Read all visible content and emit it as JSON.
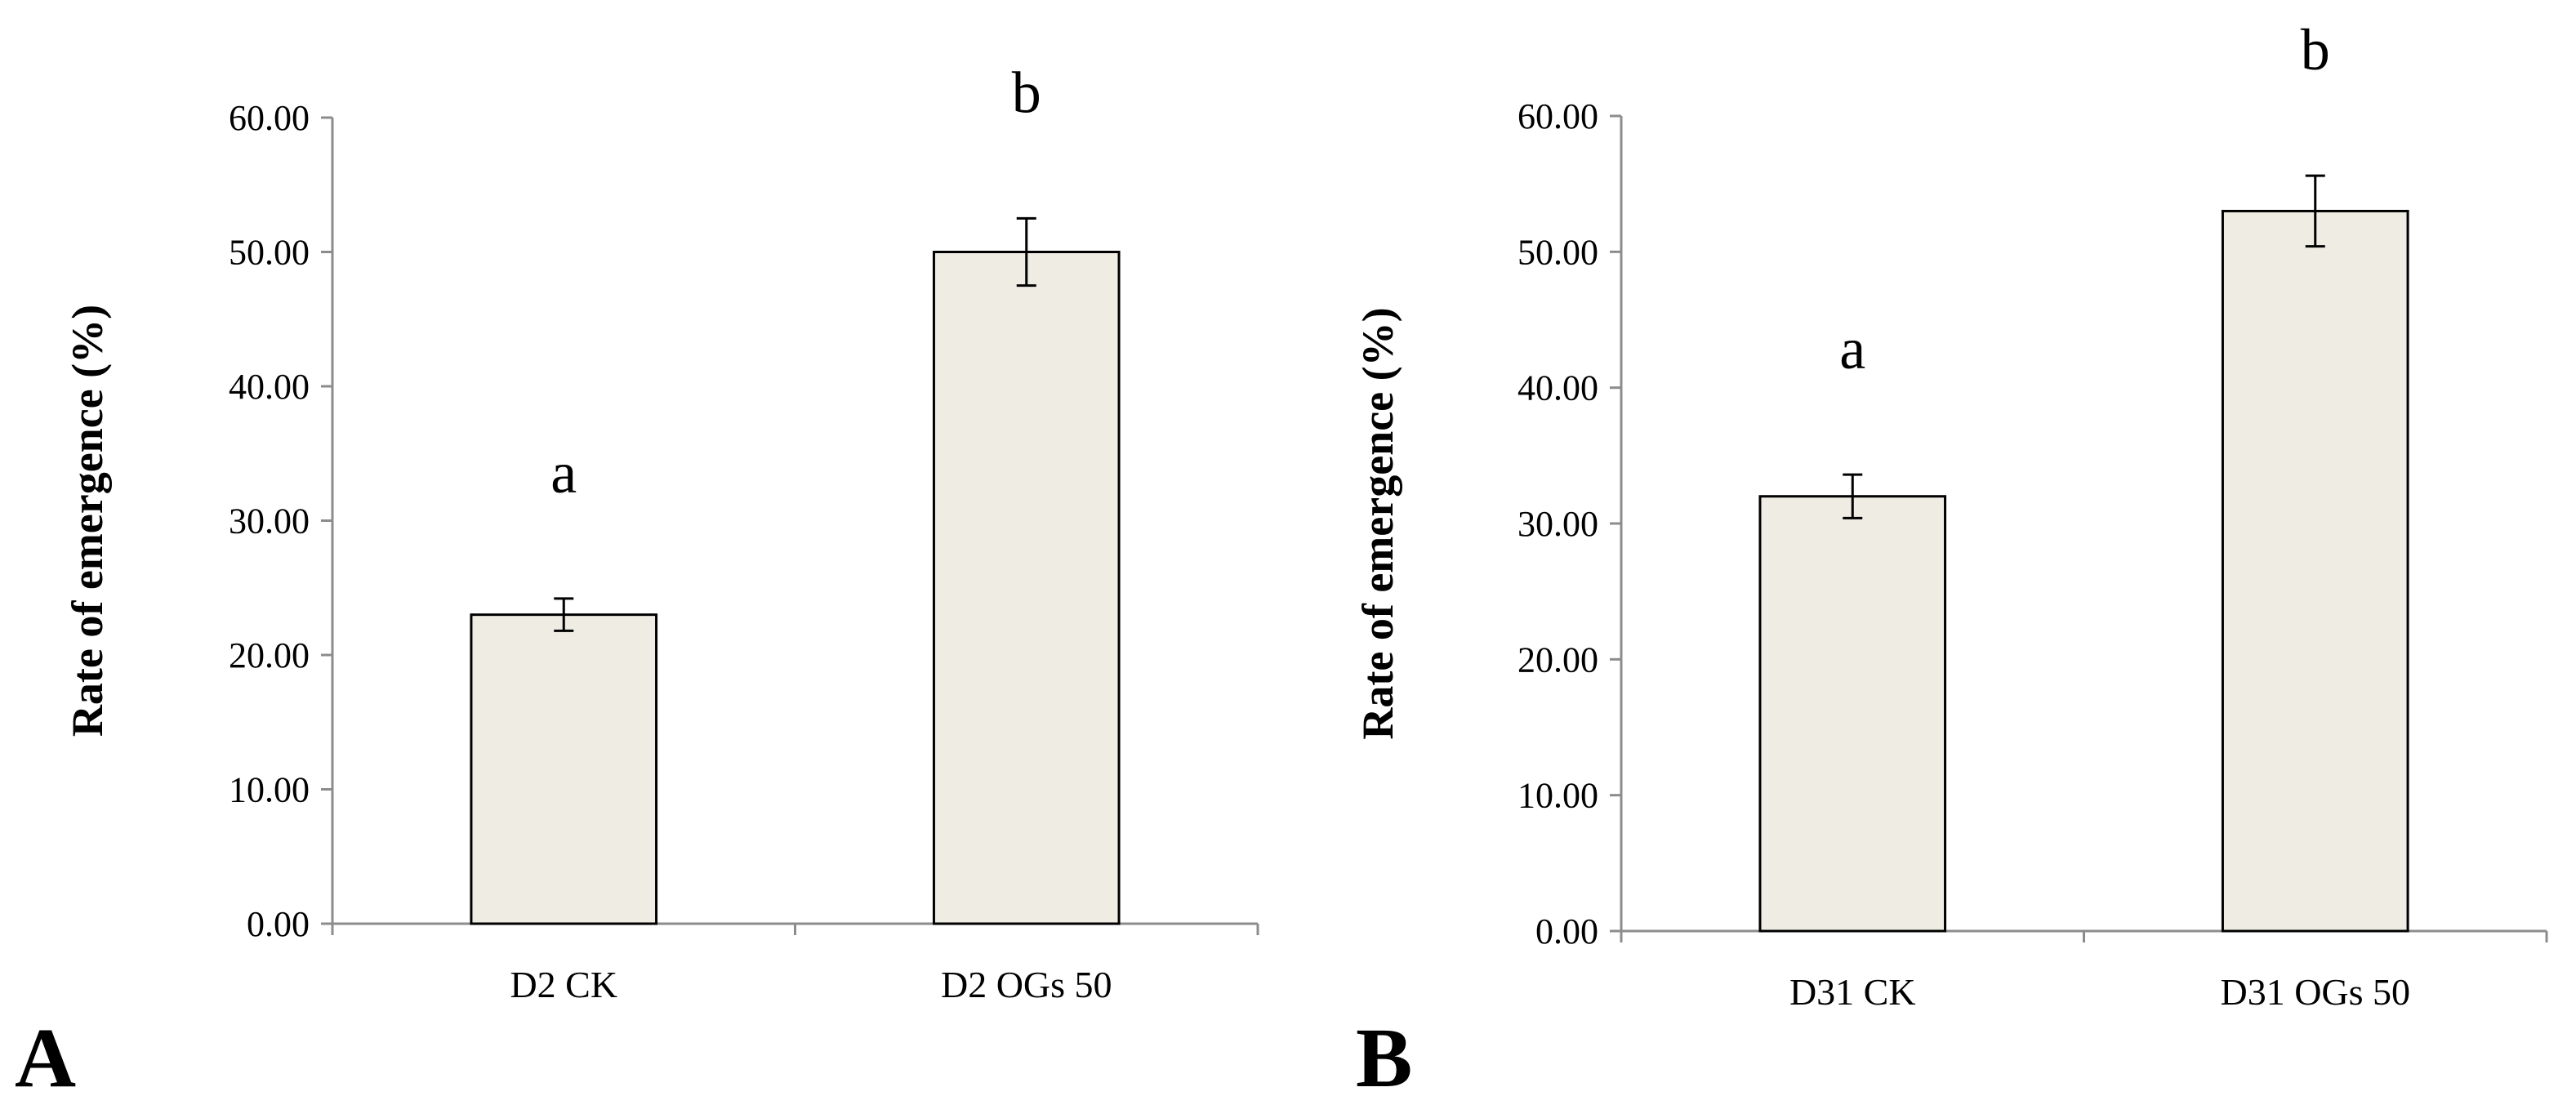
{
  "chart_data": [
    {
      "type": "bar",
      "panel_label": "A",
      "ylabel": "Rate of emergence (%)",
      "xlabel": "",
      "ylim": [
        0,
        60
      ],
      "yticks": [
        "0.00",
        "10.00",
        "20.00",
        "30.00",
        "40.00",
        "50.00",
        "60.00"
      ],
      "categories": [
        "D2 CK",
        "D2 OGs 50"
      ],
      "values": [
        23.0,
        50.0
      ],
      "errors": [
        1.2,
        2.5
      ],
      "significance": [
        "a",
        "b"
      ],
      "bar_color": "#efede3",
      "grid": false,
      "legend": "none"
    },
    {
      "type": "bar",
      "panel_label": "B",
      "ylabel": "Rate of emergence (%)",
      "xlabel": "",
      "ylim": [
        0,
        60
      ],
      "yticks": [
        "0.00",
        "10.00",
        "20.00",
        "30.00",
        "40.00",
        "50.00",
        "60.00"
      ],
      "categories": [
        "D31 CK",
        "D31 OGs 50"
      ],
      "values": [
        32.0,
        53.0
      ],
      "errors": [
        1.6,
        2.6
      ],
      "significance": [
        "a",
        "b"
      ],
      "bar_color": "#efede3",
      "grid": false,
      "legend": "none"
    }
  ]
}
